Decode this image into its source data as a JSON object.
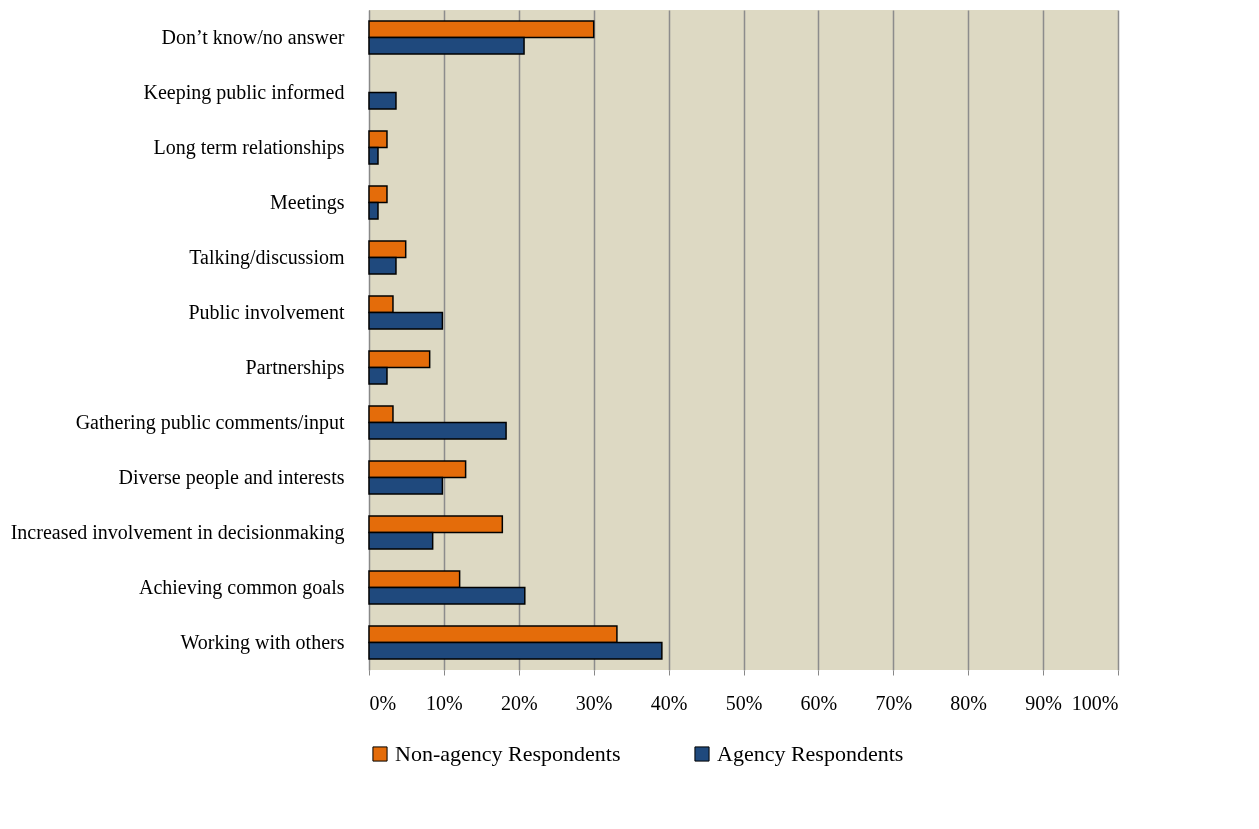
{
  "chart_data": {
    "type": "bar",
    "orientation": "horizontal",
    "categories": [
      "Don’t know/no answer",
      "Keeping public informed",
      "Long term relationships",
      "Meetings",
      "Talking/discussiom",
      "Public involvement",
      "Partnerships",
      "Gathering public comments/input",
      "Diverse people and interests",
      "Increased involvement in decisionmaking",
      "Achieving common goals",
      "Working with others"
    ],
    "series": [
      {
        "name": "Non-agency Respondents",
        "color": "#e46c0a",
        "values": [
          30,
          null,
          2.4,
          2.4,
          4.9,
          3.2,
          8.1,
          3.2,
          12.9,
          17.8,
          12.1,
          33.1
        ]
      },
      {
        "name": "Agency Respondents",
        "color": "#1f497d",
        "values": [
          20.7,
          3.6,
          1.2,
          1.2,
          3.6,
          9.8,
          2.4,
          18.3,
          9.8,
          8.5,
          20.8,
          39.1
        ]
      }
    ],
    "xlim": [
      0,
      100
    ],
    "xticks": [
      {
        "value": 0,
        "label": "0%"
      },
      {
        "value": 10,
        "label": "10%"
      },
      {
        "value": 20,
        "label": "20%"
      },
      {
        "value": 30,
        "label": "30%"
      },
      {
        "value": 40,
        "label": "40%"
      },
      {
        "value": 50,
        "label": "50%"
      },
      {
        "value": 60,
        "label": "60%"
      },
      {
        "value": 70,
        "label": "70%"
      },
      {
        "value": 80,
        "label": "80%"
      },
      {
        "value": 90,
        "label": "90%"
      },
      {
        "value": 100,
        "label": "100%"
      }
    ],
    "grid": "x",
    "legend": "bottom"
  }
}
